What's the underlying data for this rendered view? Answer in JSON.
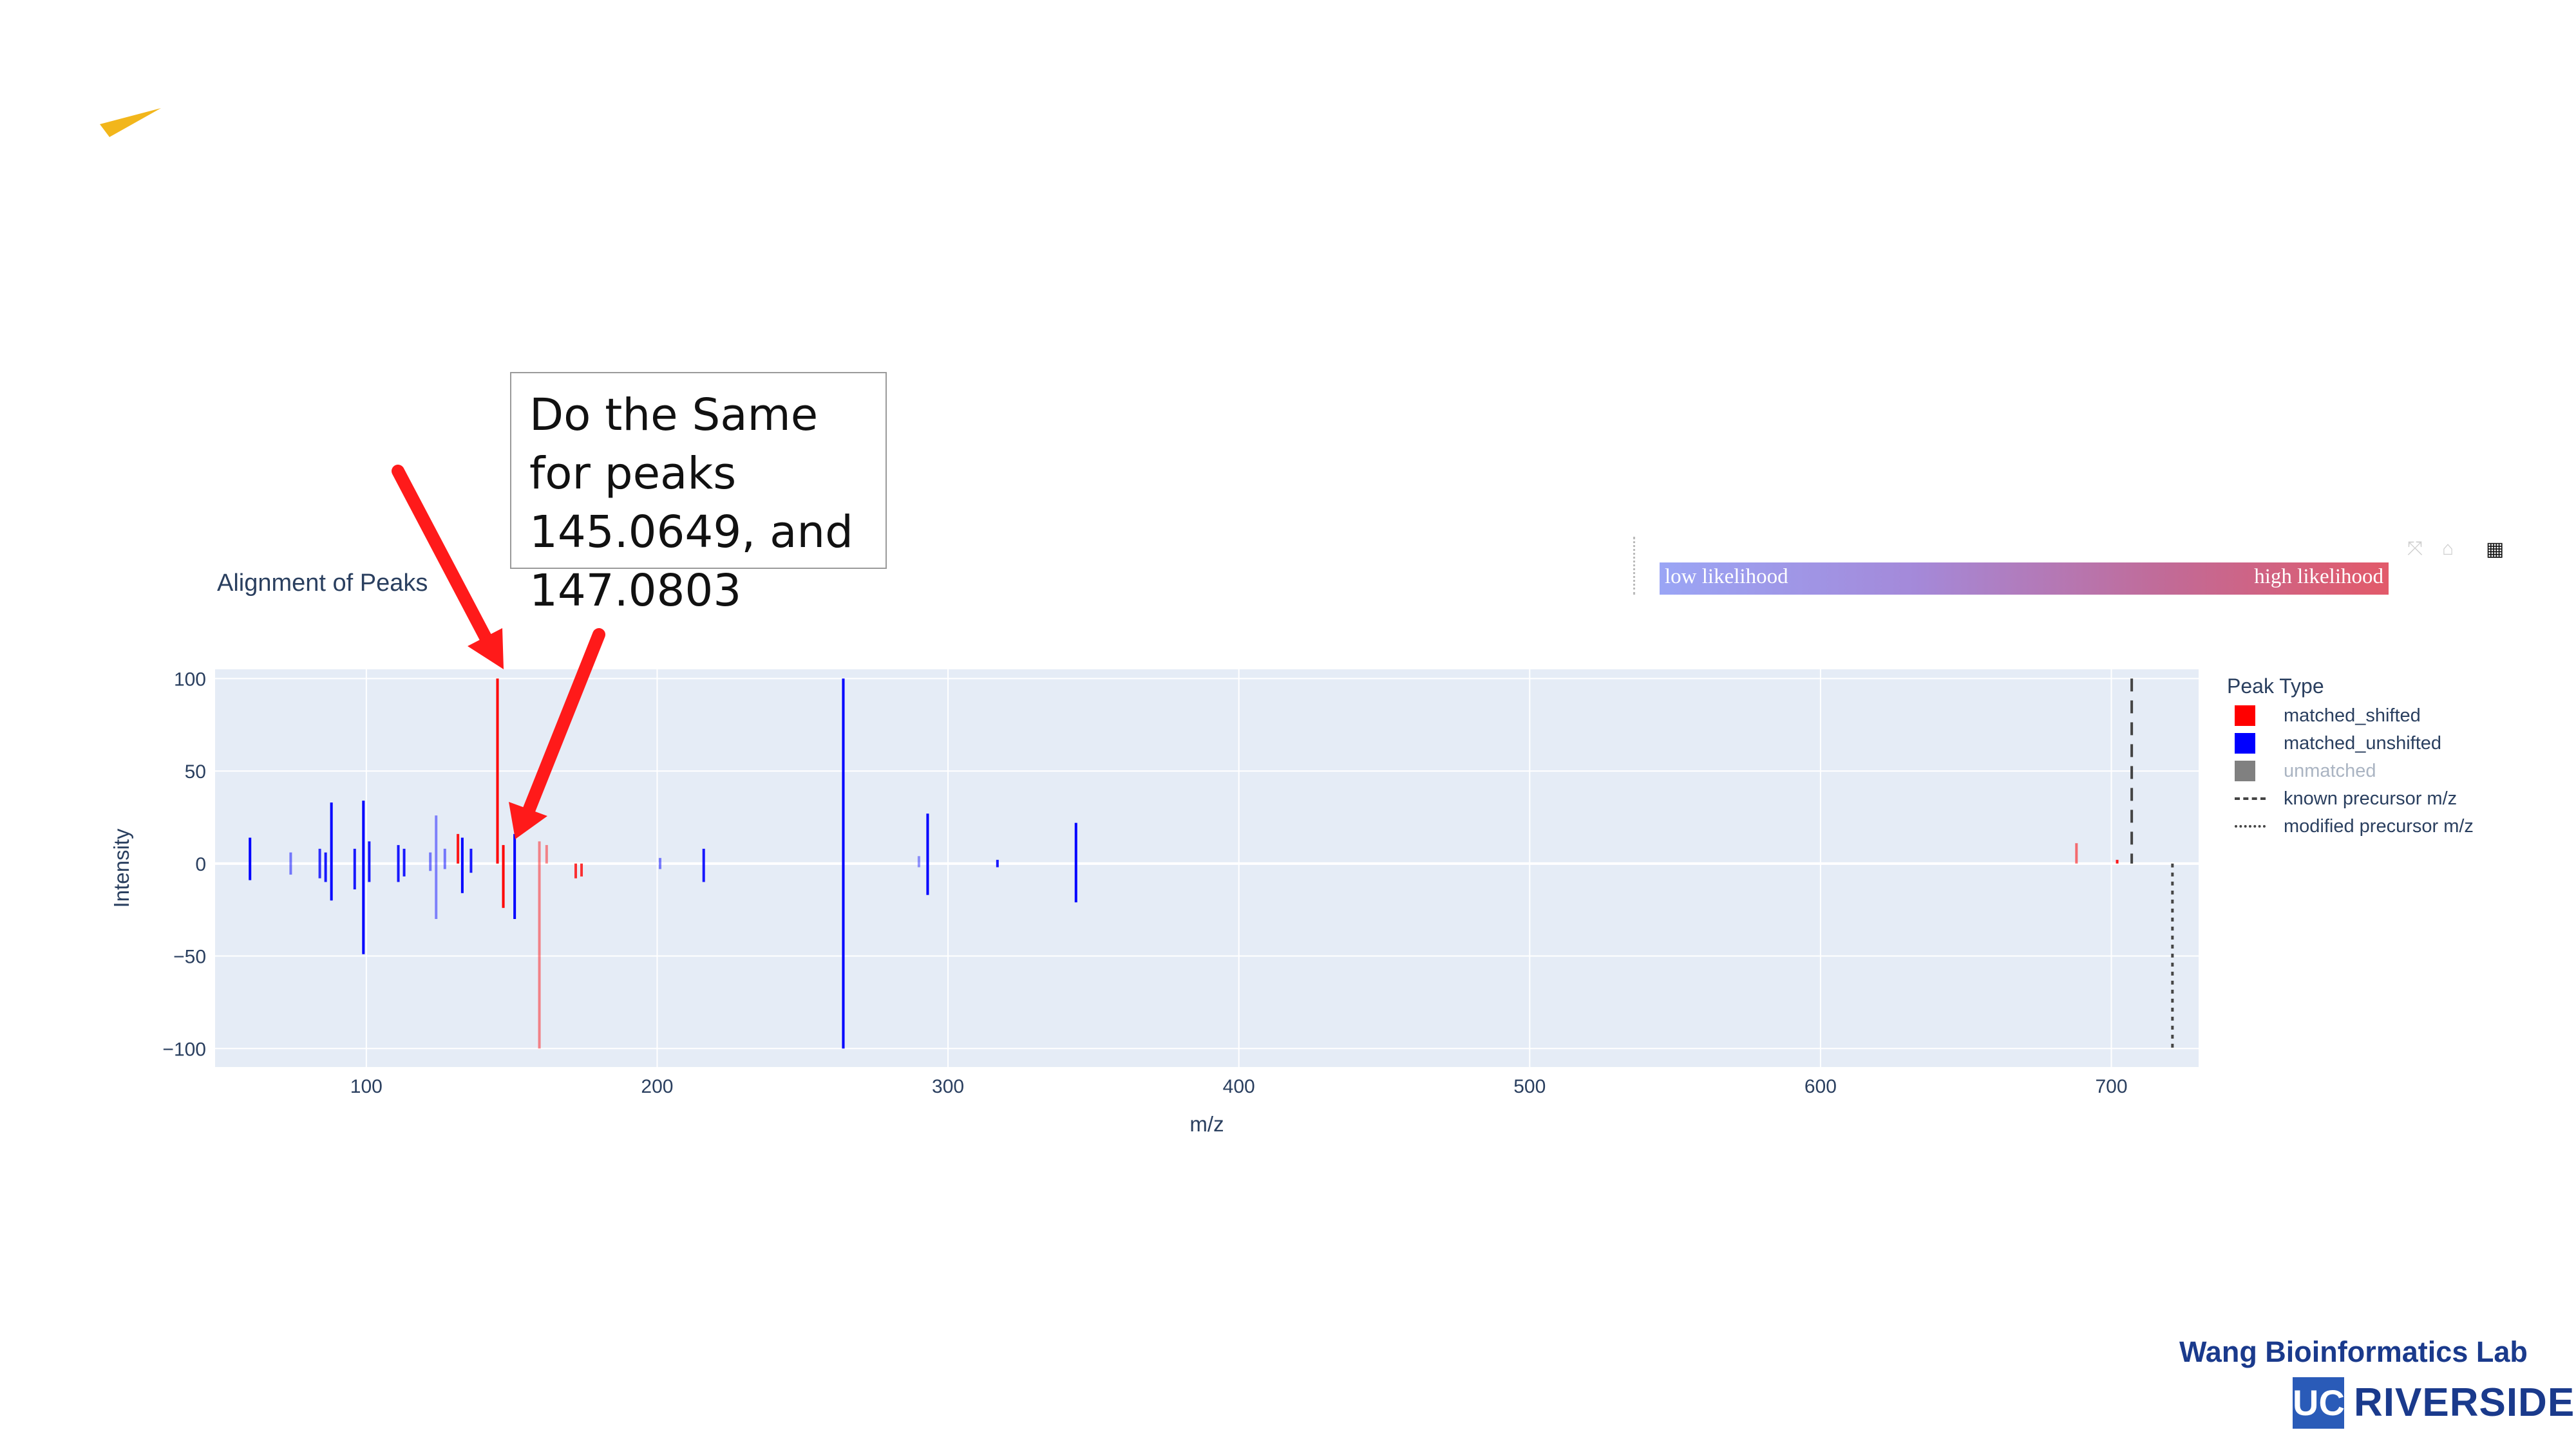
{
  "callout": {
    "text": "Do the Same\nfor peaks\n145.0649, and\n147.0803"
  },
  "colorbar": {
    "low_label": "low likelihood",
    "high_label": "high likelihood"
  },
  "brand": {
    "lab": "Wang Bioinformatics Lab",
    "uc": "UC",
    "campus": "RIVERSIDE"
  },
  "colors": {
    "matched_shifted": "#ff0000",
    "matched_unshifted": "#0000ff",
    "unmatched": "#808080",
    "plot_bg": "#e5ecf6",
    "arrow": "#ff1a1a",
    "accent": "#f2b61b"
  },
  "chart_data": {
    "type": "bar",
    "title": "Alignment of Peaks",
    "xlabel": "m/z",
    "ylabel": "Intensity",
    "xlim": [
      48,
      730
    ],
    "ylim": [
      -110,
      105
    ],
    "xticks": [
      100,
      200,
      300,
      400,
      500,
      600,
      700
    ],
    "yticks": [
      -100,
      -50,
      0,
      50,
      100
    ],
    "xtick_labels": [
      "100",
      "200",
      "300",
      "400",
      "500",
      "600",
      "700"
    ],
    "ytick_labels": [
      "−100",
      "−50",
      "0",
      "50",
      "100"
    ],
    "legend_title": "Peak Type",
    "legend": [
      "matched_shifted",
      "matched_unshifted",
      "unmatched",
      "known precursor m/z",
      "modified precursor m/z"
    ],
    "legend_position": "right",
    "grid": true,
    "known_precursor_mz": 707,
    "modified_precursor_mz": 721,
    "series": [
      {
        "name": "matched_shifted",
        "peaks": [
          {
            "mz": 131.5,
            "top": 16,
            "bottom": 0,
            "alpha": 0.9
          },
          {
            "mz": 145.1,
            "top": 100,
            "bottom": 0,
            "alpha": 1.0
          },
          {
            "mz": 147.1,
            "top": 10,
            "bottom": -24,
            "alpha": 1.0
          },
          {
            "mz": 159.5,
            "top": 12,
            "bottom": -100,
            "alpha": 0.45
          },
          {
            "mz": 162,
            "top": 10,
            "bottom": 0,
            "alpha": 0.45
          },
          {
            "mz": 172,
            "top": 0,
            "bottom": -8,
            "alpha": 0.8
          },
          {
            "mz": 174,
            "top": 0,
            "bottom": -7,
            "alpha": 0.8
          },
          {
            "mz": 688,
            "top": 11,
            "bottom": 0,
            "alpha": 0.55
          },
          {
            "mz": 702,
            "top": 2,
            "bottom": 0,
            "alpha": 0.9
          }
        ]
      },
      {
        "name": "matched_unshifted",
        "peaks": [
          {
            "mz": 60,
            "top": 14,
            "bottom": -9,
            "alpha": 1.0
          },
          {
            "mz": 74,
            "top": 6,
            "bottom": -6,
            "alpha": 0.5
          },
          {
            "mz": 84,
            "top": 8,
            "bottom": -8,
            "alpha": 0.8
          },
          {
            "mz": 86,
            "top": 6,
            "bottom": -10,
            "alpha": 0.9
          },
          {
            "mz": 88,
            "top": 33,
            "bottom": -20,
            "alpha": 1.0
          },
          {
            "mz": 96,
            "top": 8,
            "bottom": -14,
            "alpha": 0.9
          },
          {
            "mz": 99,
            "top": 34,
            "bottom": -49,
            "alpha": 1.0
          },
          {
            "mz": 101,
            "top": 12,
            "bottom": -10,
            "alpha": 0.9
          },
          {
            "mz": 111,
            "top": 10,
            "bottom": -10,
            "alpha": 0.9
          },
          {
            "mz": 113,
            "top": 8,
            "bottom": -7,
            "alpha": 0.9
          },
          {
            "mz": 122,
            "top": 6,
            "bottom": -4,
            "alpha": 0.5
          },
          {
            "mz": 124,
            "top": 26,
            "bottom": -30,
            "alpha": 0.45
          },
          {
            "mz": 127,
            "top": 8,
            "bottom": -3,
            "alpha": 0.5
          },
          {
            "mz": 133,
            "top": 14,
            "bottom": -16,
            "alpha": 1.0
          },
          {
            "mz": 136,
            "top": 8,
            "bottom": -5,
            "alpha": 0.9
          },
          {
            "mz": 151,
            "top": 16,
            "bottom": -30,
            "alpha": 1.0
          },
          {
            "mz": 201,
            "top": 3,
            "bottom": -3,
            "alpha": 0.5
          },
          {
            "mz": 216,
            "top": 8,
            "bottom": -10,
            "alpha": 0.9
          },
          {
            "mz": 264,
            "top": 100,
            "bottom": -100,
            "alpha": 1.0
          },
          {
            "mz": 290,
            "top": 4,
            "bottom": -2,
            "alpha": 0.4
          },
          {
            "mz": 293,
            "top": 27,
            "bottom": -17,
            "alpha": 1.0
          },
          {
            "mz": 317,
            "top": 2,
            "bottom": -2,
            "alpha": 0.9
          },
          {
            "mz": 344,
            "top": 22,
            "bottom": -21,
            "alpha": 1.0
          }
        ]
      },
      {
        "name": "unmatched",
        "peaks": []
      }
    ]
  }
}
